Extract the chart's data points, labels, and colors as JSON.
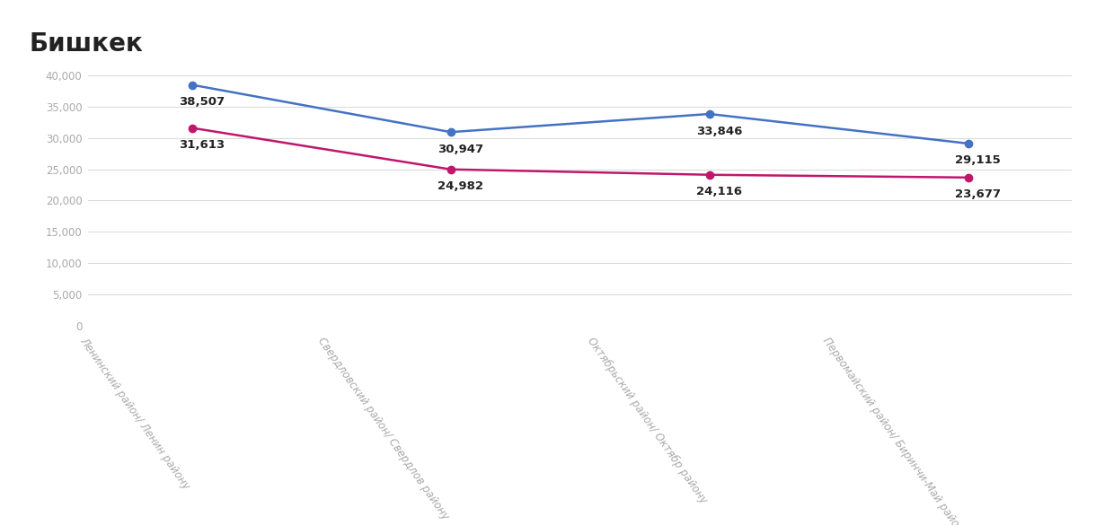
{
  "title": "Бишкек",
  "categories": [
    "Ленинский район/ Ленин району",
    "Свердловский район/ Свердлов району",
    "Октябрьский район/ Октябр району",
    "Первомайский район/ Биринчи-Май району"
  ],
  "series_april": [
    38507,
    30947,
    33846,
    29115
  ],
  "series_july": [
    31613,
    24982,
    24116,
    23677
  ],
  "color_april": "#4472C4",
  "color_july": "#C0176C",
  "ylim": [
    0,
    42000
  ],
  "yticks": [
    0,
    5000,
    10000,
    15000,
    20000,
    25000,
    30000,
    35000,
    40000
  ],
  "background_color": "#ffffff",
  "grid_color": "#d8d8d8",
  "title_fontsize": 20,
  "tick_label_fontsize": 8.5,
  "annotation_fontsize": 9.5,
  "marker_size": 6
}
